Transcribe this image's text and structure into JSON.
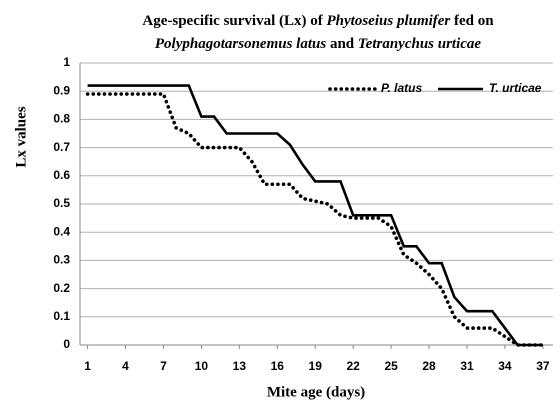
{
  "chart_data": {
    "type": "line",
    "title": [
      [
        {
          "text": "Age-specific survival (Lx) of ",
          "italic": false
        },
        {
          "text": "Phytoseius plumifer",
          "italic": true
        },
        {
          "text": " fed on",
          "italic": false
        }
      ],
      [
        {
          "text": "Polyphagotarsonemus latus",
          "italic": true
        },
        {
          "text": " and ",
          "italic": false
        },
        {
          "text": "Tetranychus urticae",
          "italic": true
        }
      ]
    ],
    "x_label": "Mite age (days)",
    "y_label": "Lx values",
    "x": [
      1,
      2,
      3,
      4,
      5,
      6,
      7,
      8,
      9,
      10,
      11,
      12,
      13,
      14,
      15,
      16,
      17,
      18,
      19,
      20,
      21,
      22,
      23,
      24,
      25,
      26,
      27,
      28,
      29,
      30,
      31,
      32,
      33,
      34,
      35,
      36,
      37
    ],
    "series": [
      {
        "name": "P. latus",
        "color": "#000000",
        "style": "dotted",
        "values": [
          0.89,
          0.89,
          0.89,
          0.89,
          0.89,
          0.89,
          0.89,
          0.77,
          0.75,
          0.7,
          0.7,
          0.7,
          0.7,
          0.65,
          0.57,
          0.57,
          0.57,
          0.52,
          0.51,
          0.5,
          0.46,
          0.45,
          0.45,
          0.45,
          0.42,
          0.32,
          0.29,
          0.25,
          0.2,
          0.1,
          0.06,
          0.06,
          0.06,
          0.03,
          0,
          0,
          0
        ]
      },
      {
        "name": "T. urticae",
        "color": "#000000",
        "style": "solid",
        "values": [
          0.92,
          0.92,
          0.92,
          0.92,
          0.92,
          0.92,
          0.92,
          0.92,
          0.92,
          0.81,
          0.81,
          0.75,
          0.75,
          0.75,
          0.75,
          0.75,
          0.71,
          0.64,
          0.58,
          0.58,
          0.58,
          0.46,
          0.46,
          0.46,
          0.46,
          0.35,
          0.35,
          0.29,
          0.29,
          0.17,
          0.12,
          0.12,
          0.12,
          0.06,
          0,
          0,
          0
        ]
      }
    ],
    "xlim": [
      0.4,
      37.8
    ],
    "xticks": [
      1,
      4,
      7,
      10,
      13,
      16,
      19,
      22,
      25,
      28,
      31,
      34,
      37
    ],
    "ylim": [
      0,
      1
    ],
    "yticks": [
      0,
      0.1,
      0.2,
      0.3,
      0.4,
      0.5,
      0.6,
      0.7,
      0.8,
      0.9,
      1
    ],
    "grid": true,
    "legend": "top-right"
  }
}
